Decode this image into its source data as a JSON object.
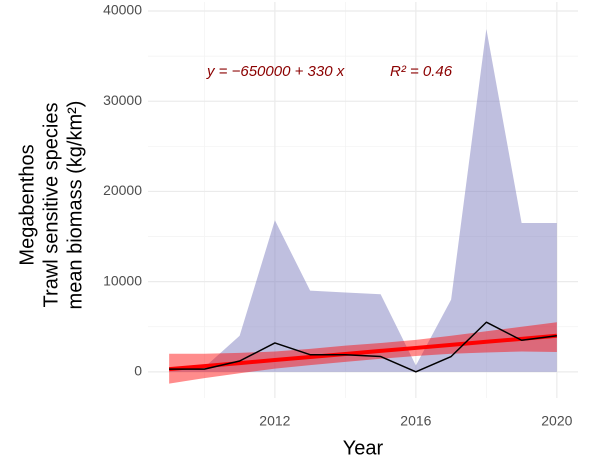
{
  "chart_data": {
    "type": "line",
    "x_label": "Year",
    "y_label": [
      "Megabenthos",
      "Trawl sensitive species",
      "mean biomass (kg/km²)"
    ],
    "annotation_equation": "y = −650000 + 330 x",
    "annotation_r2": "R² = 0.46",
    "x": [
      2009,
      2010,
      2011,
      2012,
      2013,
      2014,
      2015,
      2016,
      2017,
      2018,
      2019,
      2020
    ],
    "range": {
      "color": "#8080c0",
      "lower": [
        0,
        0,
        0,
        0,
        0,
        0,
        0,
        0,
        0,
        0,
        0,
        0
      ],
      "upper": [
        300,
        500,
        4000,
        16800,
        9000,
        8800,
        8600,
        700,
        8000,
        38000,
        16500,
        16500
      ]
    },
    "mean": {
      "color": "#000000",
      "values": [
        300,
        300,
        1200,
        3200,
        1900,
        1900,
        1700,
        0,
        1700,
        5500,
        3500,
        4000
      ]
    },
    "fit": {
      "color": "#ff0000",
      "values": [
        300,
        640,
        970,
        1310,
        1650,
        1980,
        2320,
        2650,
        2990,
        3330,
        3660,
        4000
      ],
      "lower": [
        -1300,
        -700,
        -150,
        350,
        750,
        1100,
        1450,
        1750,
        2000,
        2150,
        2250,
        2200
      ],
      "upper": [
        2000,
        2000,
        2100,
        2250,
        2550,
        2900,
        3200,
        3550,
        4000,
        4500,
        5000,
        5500
      ]
    },
    "xlim": [
      2008.4,
      2020.6
    ],
    "ylim": [
      -2900,
      41000
    ],
    "xticks": [
      2012,
      2016,
      2020
    ],
    "yticks": [
      0,
      10000,
      20000,
      30000,
      40000
    ],
    "grid": true
  }
}
